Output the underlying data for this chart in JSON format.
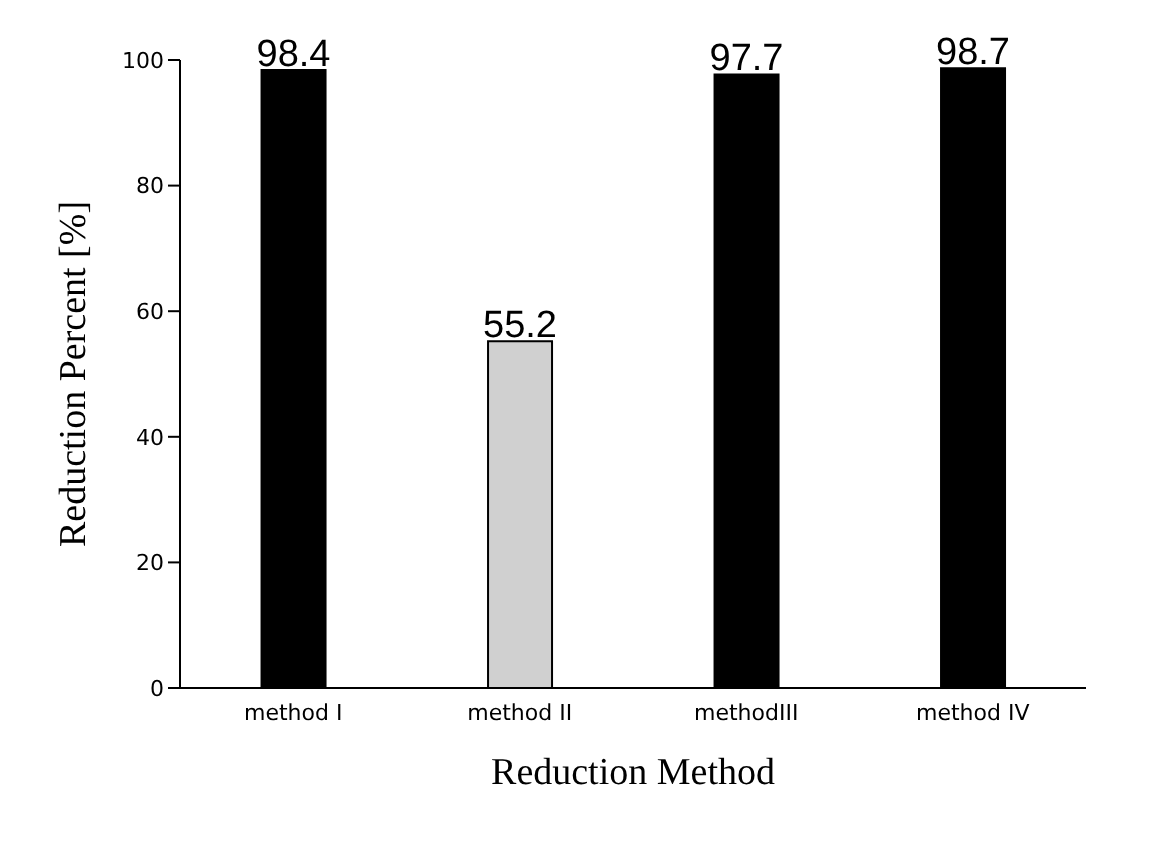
{
  "chart_data": {
    "type": "bar",
    "xlabel": "Reduction Method",
    "ylabel": "Reduction Percent  [%]",
    "categories": [
      "method I",
      "method II",
      "methodIII",
      "method IV"
    ],
    "values": [
      98.4,
      55.2,
      97.7,
      98.7
    ],
    "colors": [
      "#000000",
      "#d0d0d0",
      "#000000",
      "#000000"
    ],
    "ylim": [
      0,
      100
    ],
    "yticks": [
      0,
      20,
      40,
      60,
      80,
      100
    ],
    "data_labels": true,
    "grid": false,
    "legend": false
  }
}
